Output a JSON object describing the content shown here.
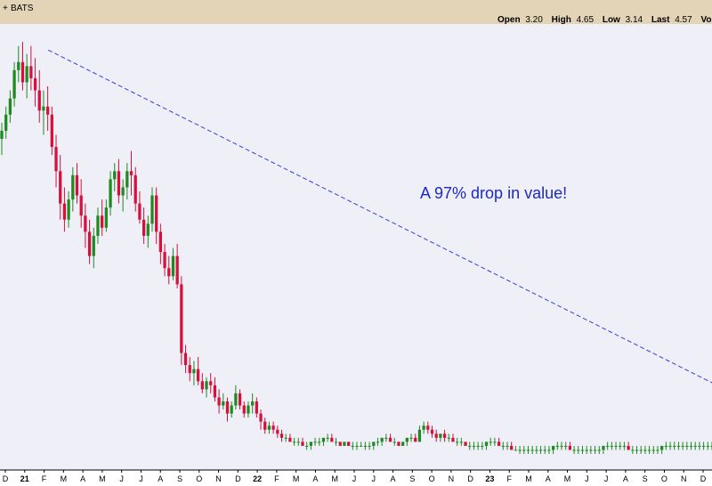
{
  "header": {
    "symbol": "BATS",
    "open_label": "Open",
    "open_value": "3.20",
    "high_label": "High",
    "high_value": "4.65",
    "low_label": "Low",
    "low_value": "3.14",
    "last_label": "Last",
    "last_value": "4.57",
    "vol_label": "Volu"
  },
  "colors": {
    "up": "#1f8a1f",
    "down": "#d6103c",
    "trendline": "#3340d6",
    "annotation": "#1c28c8",
    "plot_bg": "#efeff8",
    "header_bg": "#e3d4b8"
  },
  "chart_data": {
    "type": "candlestick",
    "title": "",
    "xlabel": "",
    "ylabel": "",
    "annotation": "A 97% drop in value!",
    "x_ticks": [
      "D",
      "21",
      "F",
      "M",
      "A",
      "M",
      "J",
      "J",
      "A",
      "S",
      "O",
      "N",
      "D",
      "22",
      "F",
      "M",
      "A",
      "M",
      "J",
      "J",
      "A",
      "S",
      "O",
      "N",
      "D",
      "23",
      "F",
      "M",
      "A",
      "M",
      "J",
      "J",
      "A",
      "S",
      "O",
      "N",
      "D"
    ],
    "year_ticks": [
      "21",
      "22",
      "23"
    ],
    "trendline": {
      "from_index": 6,
      "to_index": 170,
      "from_value": 100,
      "to_value": 16
    },
    "series_index_range": [
      0,
      170
    ],
    "value_range": [
      0,
      104
    ],
    "candles": [
      [
        78,
        82,
        74,
        80
      ],
      [
        80,
        86,
        78,
        84
      ],
      [
        84,
        90,
        82,
        88
      ],
      [
        88,
        97,
        86,
        95
      ],
      [
        95,
        101,
        92,
        97
      ],
      [
        97,
        102,
        90,
        92
      ],
      [
        92,
        99,
        88,
        96
      ],
      [
        96,
        101,
        90,
        93
      ],
      [
        93,
        98,
        86,
        90
      ],
      [
        90,
        95,
        82,
        85
      ],
      [
        85,
        90,
        79,
        86
      ],
      [
        86,
        91,
        80,
        84
      ],
      [
        84,
        86,
        74,
        76
      ],
      [
        76,
        79,
        66,
        70
      ],
      [
        70,
        74,
        58,
        62
      ],
      [
        62,
        66,
        55,
        58
      ],
      [
        58,
        65,
        56,
        63
      ],
      [
        63,
        71,
        60,
        69
      ],
      [
        69,
        72,
        62,
        64
      ],
      [
        64,
        68,
        56,
        59
      ],
      [
        59,
        62,
        51,
        55
      ],
      [
        55,
        58,
        47,
        49
      ],
      [
        49,
        56,
        46,
        54
      ],
      [
        54,
        61,
        52,
        59
      ],
      [
        59,
        63,
        54,
        56
      ],
      [
        56,
        63,
        55,
        61
      ],
      [
        61,
        70,
        59,
        68
      ],
      [
        68,
        72,
        65,
        70
      ],
      [
        70,
        73,
        62,
        64
      ],
      [
        64,
        68,
        60,
        66
      ],
      [
        66,
        72,
        63,
        70
      ],
      [
        70,
        75,
        64,
        69
      ],
      [
        69,
        71,
        60,
        62
      ],
      [
        62,
        65,
        57,
        58
      ],
      [
        58,
        61,
        52,
        54
      ],
      [
        54,
        59,
        51,
        57
      ],
      [
        57,
        66,
        55,
        64
      ],
      [
        64,
        66,
        52,
        55
      ],
      [
        55,
        57,
        47,
        50
      ],
      [
        50,
        52,
        44,
        46
      ],
      [
        46,
        49,
        42,
        44
      ],
      [
        44,
        51,
        43,
        49
      ],
      [
        49,
        52,
        41,
        42
      ],
      [
        42,
        44,
        22,
        25
      ],
      [
        25,
        27,
        20,
        22
      ],
      [
        22,
        24,
        18,
        20
      ],
      [
        20,
        23,
        17,
        21
      ],
      [
        21,
        24,
        17,
        18
      ],
      [
        18,
        20,
        15,
        16
      ],
      [
        16,
        19,
        14,
        18
      ],
      [
        18,
        20,
        15,
        17
      ],
      [
        17,
        19,
        13,
        14
      ],
      [
        14,
        16,
        10,
        12
      ],
      [
        12,
        15,
        11,
        13
      ],
      [
        13,
        14,
        8,
        10
      ],
      [
        10,
        13,
        9,
        12
      ],
      [
        12,
        17,
        11,
        15
      ],
      [
        15,
        16,
        11,
        12
      ],
      [
        12,
        13,
        9,
        10
      ],
      [
        10,
        13,
        9,
        12
      ],
      [
        12,
        15,
        10,
        13
      ],
      [
        13,
        14,
        9,
        10
      ],
      [
        10,
        11,
        6,
        8
      ],
      [
        8,
        9,
        5,
        6
      ],
      [
        6,
        8,
        5,
        7
      ],
      [
        7,
        8,
        5,
        6
      ],
      [
        6,
        7,
        4,
        5
      ],
      [
        5,
        6,
        3,
        4
      ],
      [
        4,
        5,
        3,
        4
      ],
      [
        4,
        5,
        3,
        3
      ],
      [
        3,
        4,
        2,
        3
      ],
      [
        3,
        4,
        2,
        3
      ],
      [
        3,
        4,
        2,
        2
      ],
      [
        2,
        3,
        1,
        2
      ],
      [
        2,
        3,
        1,
        3
      ],
      [
        3,
        4,
        2,
        3
      ],
      [
        3,
        4,
        2,
        3
      ],
      [
        3,
        4,
        2,
        4
      ],
      [
        4,
        5,
        3,
        4
      ],
      [
        4,
        5,
        3,
        3
      ],
      [
        3,
        4,
        2,
        3
      ],
      [
        3,
        3,
        2,
        2
      ],
      [
        2,
        3,
        2,
        3
      ],
      [
        3,
        3,
        2,
        2
      ],
      [
        2,
        3,
        1,
        2
      ],
      [
        2,
        3,
        1,
        2
      ],
      [
        2,
        3,
        2,
        2
      ],
      [
        2,
        3,
        1,
        2
      ],
      [
        2,
        3,
        1,
        2
      ],
      [
        2,
        3,
        1,
        3
      ],
      [
        3,
        4,
        2,
        3
      ],
      [
        3,
        4,
        2,
        4
      ],
      [
        4,
        5,
        3,
        4
      ],
      [
        4,
        5,
        3,
        3
      ],
      [
        3,
        4,
        2,
        3
      ],
      [
        3,
        3,
        2,
        2
      ],
      [
        2,
        3,
        2,
        3
      ],
      [
        3,
        4,
        2,
        4
      ],
      [
        4,
        5,
        3,
        4
      ],
      [
        4,
        5,
        3,
        3
      ],
      [
        3,
        7,
        3,
        6
      ],
      [
        6,
        8,
        5,
        7
      ],
      [
        7,
        8,
        5,
        6
      ],
      [
        6,
        7,
        4,
        5
      ],
      [
        5,
        6,
        3,
        4
      ],
      [
        4,
        5,
        3,
        5
      ],
      [
        5,
        6,
        3,
        4
      ],
      [
        4,
        5,
        3,
        4
      ],
      [
        4,
        5,
        3,
        3
      ],
      [
        3,
        4,
        2,
        3
      ],
      [
        3,
        4,
        2,
        3
      ],
      [
        3,
        3,
        2,
        2
      ],
      [
        2,
        3,
        1,
        2
      ],
      [
        2,
        3,
        1,
        2
      ],
      [
        2,
        3,
        1,
        2
      ],
      [
        2,
        3,
        1,
        2
      ],
      [
        2,
        3,
        1,
        3
      ],
      [
        3,
        4,
        2,
        3
      ],
      [
        3,
        4,
        2,
        3
      ],
      [
        3,
        4,
        2,
        2
      ],
      [
        2,
        3,
        1,
        2
      ],
      [
        2,
        3,
        1,
        2
      ],
      [
        2,
        3,
        1,
        1
      ],
      [
        1,
        2,
        1,
        1
      ],
      [
        1,
        2,
        0,
        1
      ],
      [
        1,
        2,
        0,
        1
      ],
      [
        1,
        2,
        0,
        1
      ],
      [
        1,
        2,
        0,
        1
      ],
      [
        1,
        2,
        0,
        1
      ],
      [
        1,
        2,
        0,
        1
      ],
      [
        1,
        2,
        0,
        1
      ],
      [
        1,
        2,
        0,
        1
      ],
      [
        1,
        2,
        0,
        2
      ],
      [
        2,
        3,
        1,
        2
      ],
      [
        2,
        3,
        1,
        2
      ],
      [
        2,
        3,
        1,
        2
      ],
      [
        2,
        3,
        1,
        1
      ],
      [
        1,
        2,
        0,
        1
      ],
      [
        1,
        2,
        0,
        1
      ],
      [
        1,
        2,
        0,
        1
      ],
      [
        1,
        2,
        0,
        1
      ],
      [
        1,
        2,
        0,
        1
      ],
      [
        1,
        2,
        0,
        1
      ],
      [
        1,
        2,
        0,
        1
      ],
      [
        1,
        2,
        0,
        2
      ],
      [
        2,
        3,
        1,
        2
      ],
      [
        2,
        3,
        1,
        2
      ],
      [
        2,
        3,
        1,
        2
      ],
      [
        2,
        3,
        1,
        2
      ],
      [
        2,
        3,
        1,
        2
      ],
      [
        2,
        3,
        1,
        1
      ],
      [
        1,
        2,
        0,
        1
      ],
      [
        1,
        2,
        0,
        1
      ],
      [
        1,
        2,
        0,
        1
      ],
      [
        1,
        2,
        0,
        1
      ],
      [
        1,
        2,
        0,
        1
      ],
      [
        1,
        2,
        0,
        1
      ],
      [
        1,
        2,
        0,
        1
      ],
      [
        1,
        2,
        0,
        2
      ],
      [
        2,
        3,
        1,
        2
      ],
      [
        2,
        3,
        1,
        2
      ],
      [
        2,
        3,
        1,
        2
      ],
      [
        2,
        3,
        1,
        2
      ],
      [
        2,
        3,
        1,
        2
      ],
      [
        2,
        3,
        1,
        2
      ],
      [
        2,
        3,
        1,
        2
      ],
      [
        2,
        3,
        1,
        2
      ],
      [
        2,
        3,
        1,
        2
      ],
      [
        2,
        3,
        1,
        2
      ],
      [
        2,
        3,
        1,
        2
      ],
      [
        2,
        3,
        1,
        2
      ]
    ]
  }
}
